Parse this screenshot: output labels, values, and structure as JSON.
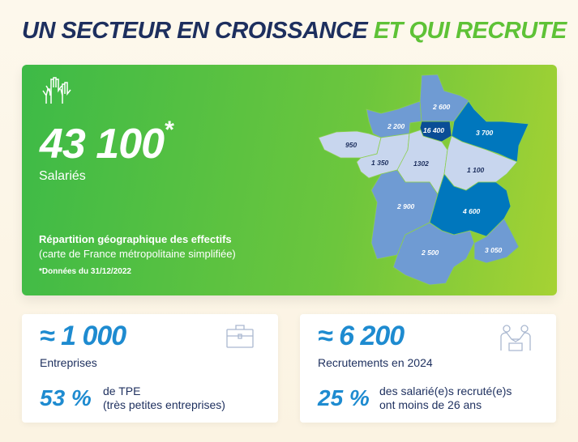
{
  "title": {
    "part1": "UN SECTEUR EN CROISSANCE",
    "part2": "ET QUI RECRUTE"
  },
  "hero": {
    "value": "43 100",
    "asterisk": "*",
    "label": "Salariés",
    "map_title": "Répartition géographique des effectifs",
    "map_subtitle": "(carte de France métropolitaine simplifiée)",
    "note": "*Données du 31/12/2022"
  },
  "regions": {
    "hauts_de_france": "2 600",
    "normandie": "2 200",
    "ile_de_france": "16 400",
    "grand_est": "3 700",
    "bretagne": "950",
    "pays_de_la_loire": "1 350",
    "centre": "1302",
    "bourgogne": "1 100",
    "nouvelle_aquitaine": "2 900",
    "auvergne_rhone_alpes": "4 600",
    "occitanie": "2 500",
    "paca": "3 050"
  },
  "cards": [
    {
      "value": "≈ 1 000",
      "label": "Entreprises",
      "pct": "53 %",
      "desc1": "de TPE",
      "desc2": "(très petites entreprises)",
      "icon": "briefcase-icon"
    },
    {
      "value": "≈ 6 200",
      "label": "Recrutements en 2024",
      "pct": "25 %",
      "desc1": "des salarié(e)s recruté(e)s",
      "desc2": "ont moins de 26 ans",
      "icon": "handshake-icon"
    }
  ],
  "colors": {
    "navy": "#1d2f5e",
    "green": "#5ec236",
    "blue": "#1e8bd0",
    "light": "#c8d6ee",
    "mid": "#6f9bd3",
    "dark": "#0077bd",
    "darkest": "#0a4d96"
  }
}
